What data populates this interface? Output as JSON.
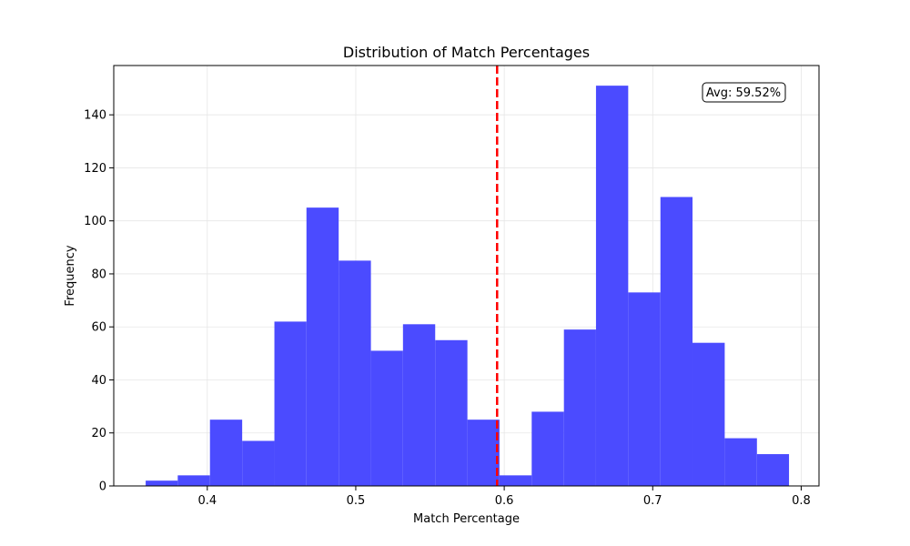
{
  "chart_data": {
    "type": "bar",
    "title": "Distribution of Match Percentages",
    "xlabel": "Match Percentage",
    "ylabel": "Frequency",
    "xlim": [
      0.337,
      0.812
    ],
    "ylim": [
      0,
      158.6
    ],
    "xticks": [
      0.4,
      0.5,
      0.6,
      0.7,
      0.8
    ],
    "xtick_labels": [
      "0.4",
      "0.5",
      "0.6",
      "0.7",
      "0.8"
    ],
    "yticks": [
      0,
      20,
      40,
      60,
      80,
      100,
      120,
      140
    ],
    "ytick_labels": [
      "0",
      "20",
      "40",
      "60",
      "80",
      "100",
      "120",
      "140"
    ],
    "grid": true,
    "bin_edges": [
      0.3585,
      0.3801,
      0.4018,
      0.4235,
      0.4452,
      0.4668,
      0.4885,
      0.5102,
      0.5318,
      0.5535,
      0.5752,
      0.5968,
      0.6185,
      0.6402,
      0.6618,
      0.6835,
      0.7052,
      0.7268,
      0.7485,
      0.7702,
      0.7918
    ],
    "counts": [
      2,
      4,
      25,
      17,
      62,
      105,
      85,
      51,
      61,
      55,
      25,
      4,
      28,
      59,
      151,
      73,
      109,
      54,
      18,
      12
    ],
    "bar_color": "#4b4bff",
    "average": 0.5952,
    "average_line_color": "#ff0000",
    "annotation": "Avg: 59.52%",
    "annotation_position": "top-right"
  }
}
